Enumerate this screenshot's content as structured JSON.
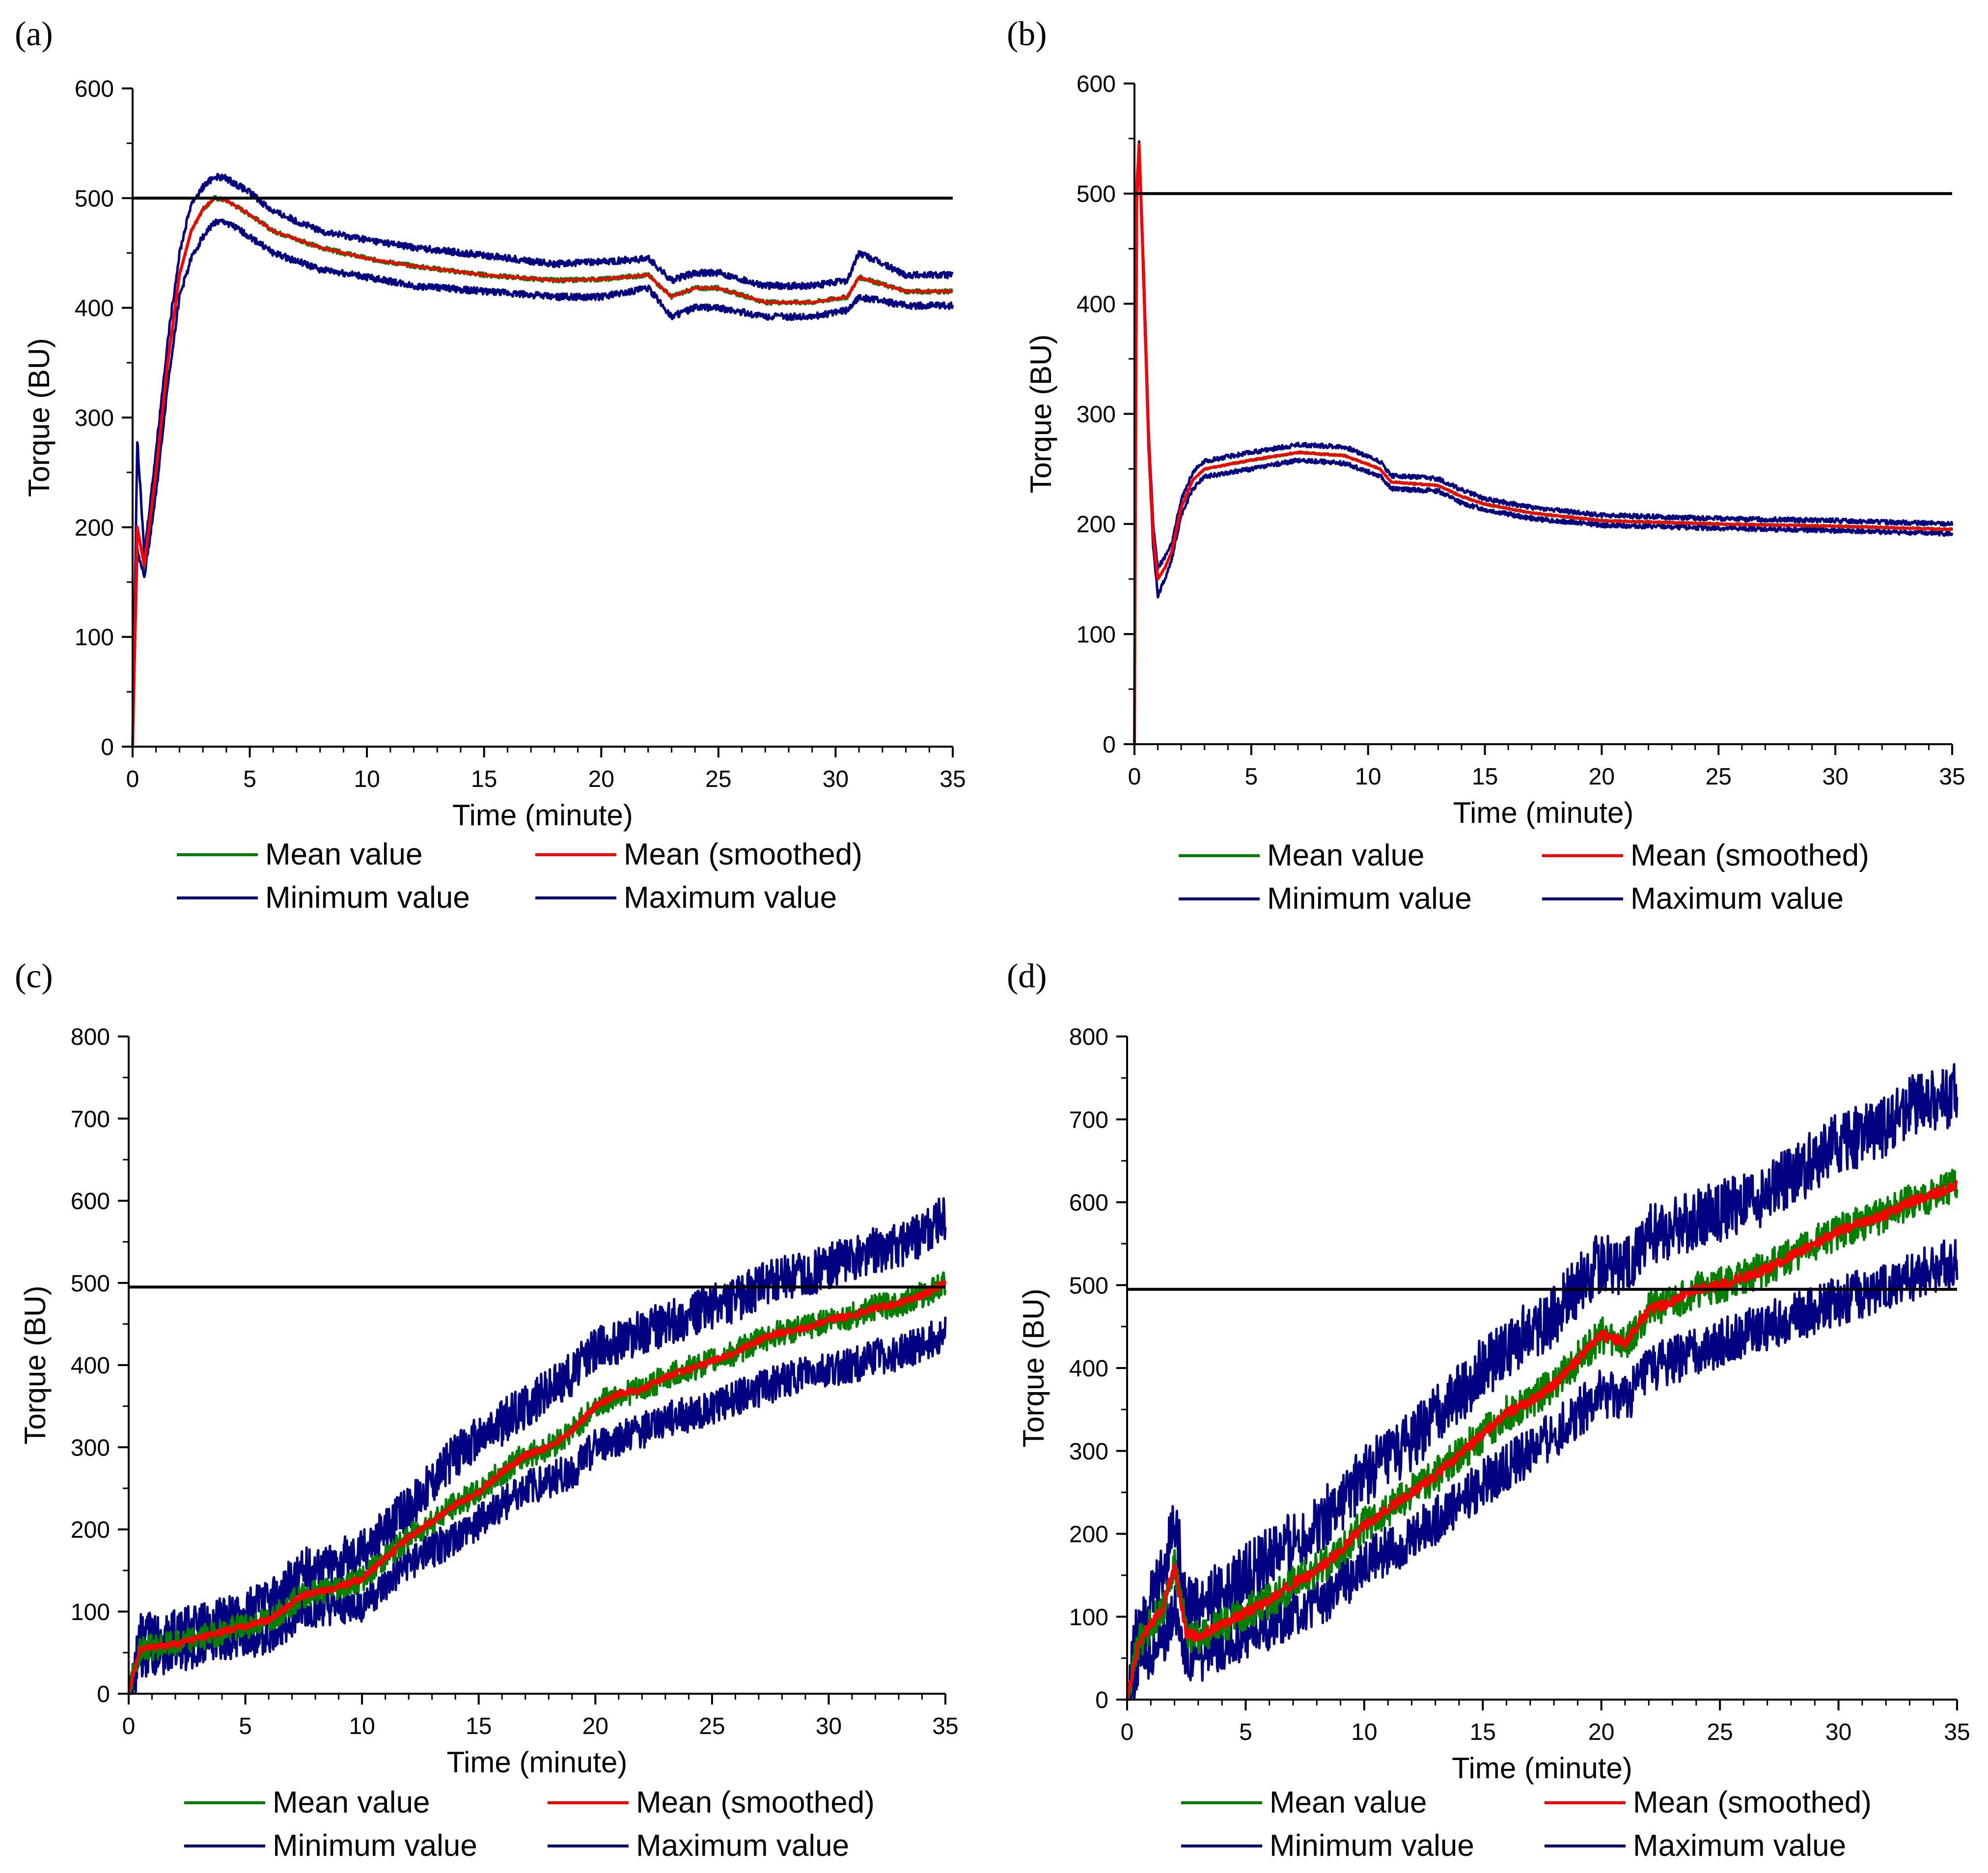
{
  "chart_data": [
    {
      "type": "line",
      "panel_label": "(a)",
      "xlabel": "Time (minute)",
      "ylabel": "Torque (BU)",
      "xlim": [
        0,
        35
      ],
      "ylim": [
        0,
        600
      ],
      "xticks": [
        "0",
        "5",
        "10",
        "15",
        "20",
        "25",
        "30",
        "35"
      ],
      "yticks": [
        "0",
        "100",
        "200",
        "300",
        "400",
        "500",
        "600"
      ],
      "reference_line": 500,
      "x": [
        0,
        0.2,
        0.5,
        1,
        1.5,
        2,
        2.5,
        3,
        3.5,
        4,
        5,
        6,
        8,
        10,
        12,
        15,
        18,
        20,
        22,
        23,
        24,
        25,
        27,
        29,
        30.5,
        31,
        33,
        35
      ],
      "series": [
        {
          "name": "Mean value",
          "color": "#008000",
          "noise": 2,
          "values": [
            0,
            200,
            165,
            250,
            350,
            430,
            470,
            490,
            500,
            498,
            485,
            470,
            455,
            445,
            438,
            430,
            425,
            426,
            430,
            410,
            418,
            418,
            405,
            405,
            410,
            428,
            415,
            415
          ]
        },
        {
          "name": "Mean (smoothed)",
          "color": "#ff0000",
          "noise": 0,
          "values": [
            0,
            200,
            165,
            250,
            350,
            430,
            470,
            490,
            500,
            498,
            485,
            470,
            455,
            445,
            438,
            430,
            425,
            426,
            430,
            410,
            418,
            418,
            405,
            405,
            410,
            428,
            415,
            415
          ]
        },
        {
          "name": "Minimum value",
          "color": "#000080",
          "noise": 3,
          "values": [
            0,
            180,
            155,
            230,
            330,
            410,
            445,
            465,
            478,
            478,
            465,
            450,
            435,
            428,
            420,
            415,
            410,
            410,
            418,
            392,
            400,
            400,
            392,
            392,
            398,
            410,
            402,
            402
          ]
        },
        {
          "name": "Maximum value",
          "color": "#000080",
          "noise": 3,
          "values": [
            0,
            280,
            175,
            270,
            370,
            450,
            495,
            510,
            520,
            518,
            505,
            488,
            470,
            462,
            455,
            448,
            440,
            442,
            445,
            425,
            432,
            432,
            420,
            420,
            425,
            450,
            430,
            430
          ]
        }
      ]
    },
    {
      "type": "line",
      "panel_label": "(b)",
      "xlabel": "Time (minute)",
      "ylabel": "Torque (BU)",
      "xlim": [
        0,
        35
      ],
      "ylim": [
        0,
        600
      ],
      "xticks": [
        "0",
        "5",
        "10",
        "15",
        "20",
        "25",
        "30",
        "35"
      ],
      "yticks": [
        "0",
        "100",
        "200",
        "300",
        "400",
        "500",
        "600"
      ],
      "reference_line": 500,
      "x": [
        0,
        0.1,
        0.2,
        0.4,
        0.6,
        0.8,
        1,
        1.3,
        1.6,
        2,
        2.5,
        3,
        5,
        7,
        9,
        10.5,
        11,
        13,
        14,
        15,
        17,
        20,
        25,
        30,
        35
      ],
      "series": [
        {
          "name": "Mean value",
          "color": "#008000",
          "noise": 1,
          "values": [
            0,
            500,
            545,
            420,
            280,
            190,
            150,
            160,
            175,
            215,
            240,
            250,
            258,
            265,
            262,
            250,
            238,
            235,
            225,
            218,
            210,
            203,
            200,
            198,
            195
          ]
        },
        {
          "name": "Mean (smoothed)",
          "color": "#ff0000",
          "noise": 0,
          "values": [
            0,
            500,
            545,
            420,
            280,
            190,
            150,
            160,
            175,
            215,
            240,
            250,
            258,
            265,
            262,
            250,
            238,
            235,
            225,
            218,
            210,
            203,
            200,
            198,
            195
          ]
        },
        {
          "name": "Minimum value",
          "color": "#000080",
          "noise": 2,
          "values": [
            0,
            490,
            540,
            410,
            270,
            180,
            135,
            150,
            168,
            208,
            232,
            243,
            250,
            258,
            255,
            244,
            232,
            230,
            219,
            213,
            205,
            199,
            196,
            194,
            191
          ]
        },
        {
          "name": "Maximum value",
          "color": "#000080",
          "noise": 2,
          "values": [
            0,
            510,
            548,
            430,
            290,
            200,
            160,
            170,
            182,
            222,
            247,
            257,
            265,
            272,
            270,
            257,
            244,
            241,
            231,
            223,
            215,
            208,
            205,
            203,
            200
          ]
        }
      ]
    },
    {
      "type": "line",
      "panel_label": "(c)",
      "xlabel": "Time (minute)",
      "ylabel": "Torque (BU)",
      "xlim": [
        0,
        35
      ],
      "ylim": [
        0,
        800
      ],
      "xticks": [
        "0",
        "5",
        "10",
        "15",
        "20",
        "25",
        "30",
        "35"
      ],
      "yticks": [
        "0",
        "100",
        "200",
        "300",
        "400",
        "500",
        "600",
        "700",
        "800"
      ],
      "reference_line": 495,
      "x": [
        0,
        0.5,
        2,
        4,
        6,
        7.5,
        9,
        10,
        11,
        12,
        13,
        14,
        15,
        16,
        17,
        18,
        19,
        20,
        21,
        22,
        23,
        24,
        25,
        26,
        27,
        28,
        29,
        30,
        31,
        32,
        33,
        34,
        35
      ],
      "series": [
        {
          "name": "Mean value",
          "color": "#008000",
          "noise": 16,
          "values": [
            0,
            55,
            60,
            75,
            90,
            120,
            130,
            140,
            165,
            190,
            210,
            230,
            245,
            270,
            290,
            300,
            320,
            350,
            365,
            370,
            385,
            395,
            405,
            415,
            430,
            440,
            445,
            455,
            460,
            470,
            475,
            485,
            500
          ]
        },
        {
          "name": "Mean (smoothed)",
          "color": "#ff0000",
          "noise": 4,
          "values": [
            0,
            55,
            60,
            75,
            90,
            120,
            130,
            140,
            165,
            190,
            210,
            230,
            245,
            270,
            290,
            300,
            320,
            350,
            365,
            370,
            385,
            395,
            405,
            415,
            430,
            440,
            445,
            455,
            460,
            470,
            475,
            485,
            500
          ]
        },
        {
          "name": "Minimum value",
          "color": "#000080",
          "noise": 22,
          "values": [
            0,
            40,
            48,
            60,
            70,
            100,
            105,
            110,
            130,
            160,
            175,
            190,
            210,
            230,
            250,
            260,
            270,
            300,
            310,
            320,
            335,
            340,
            350,
            360,
            370,
            380,
            390,
            395,
            400,
            410,
            415,
            425,
            440
          ]
        },
        {
          "name": "Maximum value",
          "color": "#000080",
          "noise": 28,
          "values": [
            0,
            70,
            75,
            90,
            110,
            150,
            160,
            175,
            200,
            225,
            260,
            290,
            310,
            330,
            350,
            370,
            390,
            420,
            430,
            440,
            450,
            460,
            470,
            480,
            495,
            505,
            510,
            520,
            530,
            540,
            545,
            560,
            580
          ]
        }
      ]
    },
    {
      "type": "line",
      "panel_label": "(d)",
      "xlabel": "Time (minute)",
      "ylabel": "Torque (BU)",
      "xlim": [
        0,
        35
      ],
      "ylim": [
        0,
        800
      ],
      "xticks": [
        "0",
        "5",
        "10",
        "15",
        "20",
        "25",
        "30",
        "35"
      ],
      "yticks": [
        "0",
        "100",
        "200",
        "300",
        "400",
        "500",
        "600",
        "700",
        "800"
      ],
      "reference_line": 495,
      "x": [
        0,
        0.5,
        1,
        1.5,
        2,
        2.5,
        3,
        4,
        5,
        6,
        7,
        8,
        9,
        10,
        11,
        12,
        13,
        14,
        15,
        16,
        17,
        18,
        19,
        20,
        21,
        22,
        23,
        24,
        25,
        26,
        27,
        28,
        29,
        30,
        31,
        32,
        33,
        34,
        35
      ],
      "series": [
        {
          "name": "Mean value",
          "color": "#008000",
          "noise": 22,
          "values": [
            0,
            70,
            90,
            110,
            160,
            80,
            75,
            90,
            105,
            120,
            140,
            155,
            180,
            210,
            230,
            250,
            270,
            295,
            320,
            345,
            360,
            380,
            410,
            440,
            430,
            470,
            480,
            495,
            500,
            510,
            520,
            535,
            550,
            565,
            575,
            585,
            600,
            610,
            620
          ]
        },
        {
          "name": "Mean (smoothed)",
          "color": "#ff0000",
          "noise": 6,
          "values": [
            0,
            70,
            90,
            110,
            160,
            80,
            75,
            90,
            105,
            120,
            140,
            155,
            180,
            210,
            230,
            250,
            270,
            295,
            320,
            345,
            360,
            380,
            410,
            440,
            430,
            470,
            480,
            495,
            500,
            510,
            520,
            535,
            550,
            565,
            575,
            585,
            600,
            610,
            620
          ]
        },
        {
          "name": "Minimum value",
          "color": "#000080",
          "noise": 30,
          "values": [
            0,
            45,
            55,
            70,
            110,
            55,
            50,
            65,
            75,
            90,
            105,
            115,
            135,
            165,
            180,
            195,
            215,
            240,
            260,
            280,
            300,
            320,
            345,
            370,
            360,
            400,
            410,
            420,
            430,
            440,
            450,
            460,
            470,
            480,
            490,
            500,
            510,
            520,
            530
          ]
        },
        {
          "name": "Maximum value",
          "color": "#000080",
          "noise": 38,
          "values": [
            0,
            100,
            120,
            150,
            220,
            120,
            110,
            130,
            150,
            170,
            190,
            210,
            240,
            270,
            290,
            310,
            340,
            370,
            400,
            420,
            450,
            460,
            500,
            530,
            520,
            560,
            570,
            580,
            590,
            600,
            610,
            630,
            650,
            670,
            680,
            690,
            720,
            720,
            730
          ]
        }
      ]
    }
  ],
  "legend": {
    "mean_value": "Mean value",
    "mean_smoothed": "Mean (smoothed)",
    "minimum_value": "Minimum value",
    "maximum_value": "Maximum value"
  },
  "colors": {
    "mean_value": "#008000",
    "mean_smoothed": "#ff0000",
    "minimum_value": "#000080",
    "maximum_value": "#000080",
    "reference_line": "#000000"
  }
}
